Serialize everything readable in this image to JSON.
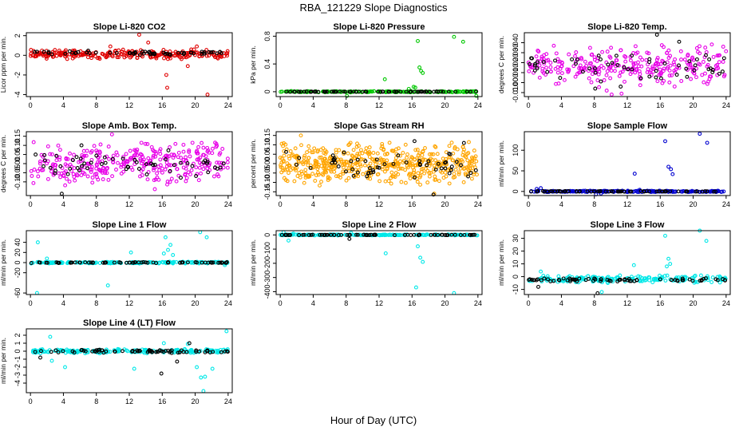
{
  "figure": {
    "title": "RBA_121229  Slope Diagnostics",
    "xlabel": "Hour of Day (UTC)"
  },
  "chart_data": [
    {
      "type": "scatter",
      "title": "Slope Li-820 CO2",
      "ylabel": "Licor ppm per min.",
      "xlim": [
        -0.5,
        24.5
      ],
      "ylim": [
        -4.2,
        2.3
      ],
      "xticks": [
        0,
        4,
        8,
        12,
        16,
        20,
        24
      ],
      "yticks": [
        -4,
        -2,
        0,
        2
      ],
      "series": [
        {
          "color": "#e00000",
          "marker": "circle",
          "band": {
            "center": 0.1,
            "spread": 0.5,
            "n": 260
          },
          "points": [
            [
              13.2,
              2.1
            ],
            [
              14.3,
              1.3
            ],
            [
              16.5,
              -2.0
            ],
            [
              16.6,
              -3.3
            ],
            [
              20.2,
              0.9
            ],
            [
              21.5,
              -4.0
            ],
            [
              19.1,
              -1.1
            ],
            [
              9.7,
              0.9
            ]
          ]
        },
        {
          "color": "#000000",
          "marker": "circle",
          "band": {
            "center": 0.25,
            "spread": 0.25,
            "n": 60
          },
          "points": []
        }
      ]
    },
    {
      "type": "scatter",
      "title": "Slope Li-820 Pressure",
      "ylabel": "kPa per min.",
      "xlim": [
        -0.5,
        24.5
      ],
      "ylim": [
        -0.07,
        0.85
      ],
      "xticks": [
        0,
        4,
        8,
        12,
        16,
        20,
        24
      ],
      "yticks": [
        0.0,
        0.4,
        0.8
      ],
      "series": [
        {
          "color": "#00c800",
          "marker": "circle",
          "band": {
            "center": 0.0,
            "spread": 0.01,
            "n": 180
          },
          "points": [
            [
              16.7,
              0.73
            ],
            [
              16.9,
              0.35
            ],
            [
              17.1,
              0.3
            ],
            [
              17.3,
              0.27
            ],
            [
              16.2,
              0.07
            ],
            [
              16.4,
              0.06
            ],
            [
              12.7,
              0.18
            ],
            [
              21.1,
              0.79
            ],
            [
              22.2,
              0.72
            ],
            [
              8.1,
              -0.06
            ],
            [
              23.8,
              -0.06
            ],
            [
              15.6,
              0.04
            ]
          ]
        },
        {
          "color": "#000000",
          "marker": "circle",
          "band": {
            "center": 0.0,
            "spread": 0.004,
            "n": 70
          },
          "points": []
        }
      ]
    },
    {
      "type": "scatter",
      "title": "Slope Li-820 Temp.",
      "ylabel": "degrees C per min.",
      "xlim": [
        -0.5,
        24.5
      ],
      "ylim": [
        -0.014,
        0.05
      ],
      "xticks": [
        0,
        4,
        8,
        12,
        16,
        20,
        24
      ],
      "yticks": [
        -0.01,
        0.0,
        0.01,
        0.02,
        0.03,
        0.04
      ],
      "ytick_labels": [
        "-0.010",
        "0.000",
        "0.010",
        "0.020",
        "0.030",
        "0.040"
      ],
      "series": [
        {
          "color": "#e800e8",
          "marker": "circle",
          "band": {
            "center": 0.017,
            "spread": 0.022,
            "n": 280
          },
          "points": [
            [
              10.1,
              -0.012
            ],
            [
              11.3,
              -0.011
            ],
            [
              9.5,
              -0.008
            ]
          ]
        },
        {
          "color": "#000000",
          "marker": "circle",
          "band": {
            "center": 0.016,
            "spread": 0.016,
            "n": 55
          },
          "points": [
            [
              15.6,
              0.048
            ],
            [
              18.3,
              0.041
            ],
            [
              8.1,
              -0.006
            ],
            [
              11.2,
              -0.004
            ]
          ]
        }
      ]
    },
    {
      "type": "scatter",
      "title": "Slope Amb. Box Temp.",
      "ylabel": "degrees C per min.",
      "xlim": [
        -0.5,
        24.5
      ],
      "ylim": [
        -0.175,
        0.175
      ],
      "xticks": [
        0,
        4,
        8,
        12,
        16,
        20,
        24
      ],
      "yticks": [
        -0.1,
        -0.05,
        0.0,
        0.05,
        0.1,
        0.15
      ],
      "ytick_labels": [
        "-0.10",
        "-0.05",
        "0.00",
        "0.05",
        "0.10",
        "0.15"
      ],
      "series": [
        {
          "color": "#e800e8",
          "marker": "circle",
          "band": {
            "center": 0.0,
            "spread": 0.12,
            "n": 330
          },
          "points": [
            [
              9.9,
              0.16
            ],
            [
              15.1,
              -0.14
            ]
          ]
        },
        {
          "color": "#000000",
          "marker": "circle",
          "band": {
            "center": 0.0,
            "spread": 0.08,
            "n": 55
          },
          "points": [
            [
              3.8,
              -0.165
            ],
            [
              6.2,
              0.1
            ]
          ]
        }
      ]
    },
    {
      "type": "scatter",
      "title": "Slope Gas Stream RH",
      "ylabel": "percent per min.",
      "xlim": [
        -0.5,
        24.5
      ],
      "ylim": [
        -0.17,
        0.17
      ],
      "xticks": [
        0,
        4,
        8,
        12,
        16,
        20,
        24
      ],
      "yticks": [
        -0.15,
        -0.1,
        -0.05,
        0.0,
        0.05,
        0.1,
        0.15
      ],
      "ytick_labels": [
        "-0.15",
        "-0.10",
        "-0.05",
        "0.00",
        "0.05",
        "0.10",
        "0.15"
      ],
      "series": [
        {
          "color": "#ffa500",
          "marker": "circle",
          "band": {
            "center": 0.0,
            "spread": 0.12,
            "n": 520
          },
          "points": [
            [
              18.7,
              -0.16
            ],
            [
              2.5,
              0.15
            ]
          ]
        },
        {
          "color": "#000000",
          "marker": "circle",
          "band": {
            "center": 0.0,
            "spread": 0.08,
            "n": 55
          },
          "points": [
            [
              16.3,
              0.12
            ],
            [
              18.6,
              -0.165
            ],
            [
              22.3,
              0.11
            ]
          ]
        }
      ]
    },
    {
      "type": "scatter",
      "title": "Slope Sample Flow",
      "ylabel": "ml/min per min.",
      "xlim": [
        -0.5,
        24.5
      ],
      "ylim": [
        -10,
        145
      ],
      "xticks": [
        0,
        4,
        8,
        12,
        16,
        20,
        24
      ],
      "yticks": [
        0,
        50,
        100
      ],
      "series": [
        {
          "color": "#0000d0",
          "marker": "circle",
          "band": {
            "center": 0,
            "spread": 2,
            "n": 200
          },
          "points": [
            [
              16.6,
              122
            ],
            [
              20.8,
              140
            ],
            [
              21.7,
              118
            ],
            [
              17.0,
              60
            ],
            [
              17.3,
              54
            ],
            [
              17.5,
              42
            ],
            [
              12.9,
              43
            ],
            [
              1.5,
              8
            ],
            [
              8.2,
              -7
            ],
            [
              8.8,
              -5
            ],
            [
              1.0,
              6
            ],
            [
              13.5,
              4
            ]
          ]
        },
        {
          "color": "#000000",
          "marker": "circle",
          "band": {
            "center": 0,
            "spread": 1,
            "n": 70
          },
          "points": []
        }
      ]
    },
    {
      "type": "scatter",
      "title": "Slope Line 1 Flow",
      "ylabel": "ml/min per min.",
      "xlim": [
        -0.5,
        24.5
      ],
      "ylim": [
        -63,
        63
      ],
      "xticks": [
        0,
        4,
        8,
        12,
        16,
        20,
        24
      ],
      "yticks": [
        -60,
        -20,
        0,
        20,
        40
      ],
      "series": [
        {
          "color": "#00e8e8",
          "marker": "circle",
          "band": {
            "center": 0,
            "spread": 2,
            "n": 200
          },
          "points": [
            [
              0.9,
              40
            ],
            [
              0.8,
              -60
            ],
            [
              16.4,
              50
            ],
            [
              16.7,
              25
            ],
            [
              17.0,
              35
            ],
            [
              16.2,
              18
            ],
            [
              17.3,
              15
            ],
            [
              12.2,
              20
            ],
            [
              9.4,
              -45
            ],
            [
              20.6,
              60
            ],
            [
              21.4,
              50
            ],
            [
              2.0,
              8
            ],
            [
              23.6,
              -5
            ]
          ]
        },
        {
          "color": "#000000",
          "marker": "circle",
          "band": {
            "center": 0,
            "spread": 1,
            "n": 70
          },
          "points": []
        }
      ]
    },
    {
      "type": "scatter",
      "title": "Slope Line 2 Flow",
      "ylabel": "ml/min per min.",
      "xlim": [
        -0.5,
        24.5
      ],
      "ylim": [
        -420,
        30
      ],
      "xticks": [
        0,
        4,
        8,
        12,
        16,
        20,
        24
      ],
      "yticks": [
        -400,
        -300,
        -200,
        -100,
        0
      ],
      "series": [
        {
          "color": "#00e8e8",
          "marker": "circle",
          "band": {
            "center": 0,
            "spread": 4,
            "n": 200
          },
          "points": [
            [
              1.0,
              -40
            ],
            [
              0.4,
              20
            ],
            [
              16.7,
              -80
            ],
            [
              17.0,
              -160
            ],
            [
              17.3,
              -190
            ],
            [
              16.5,
              -370
            ],
            [
              21.1,
              -410
            ],
            [
              12.8,
              -130
            ],
            [
              8.6,
              15
            ],
            [
              1.6,
              10
            ]
          ]
        },
        {
          "color": "#000000",
          "marker": "circle",
          "band": {
            "center": 0,
            "spread": 2,
            "n": 70
          },
          "points": [
            [
              8.4,
              -28
            ]
          ]
        }
      ]
    },
    {
      "type": "scatter",
      "title": "Slope Line 3 Flow",
      "ylabel": "ml/min per min.",
      "xlim": [
        -0.5,
        24.5
      ],
      "ylim": [
        -14,
        36
      ],
      "xticks": [
        0,
        4,
        8,
        12,
        16,
        20,
        24
      ],
      "yticks": [
        -10,
        0,
        10,
        20,
        30
      ],
      "series": [
        {
          "color": "#00e8e8",
          "marker": "circle",
          "band": {
            "center": -2,
            "spread": 3,
            "n": 200
          },
          "points": [
            [
              16.6,
              32
            ],
            [
              20.8,
              36
            ],
            [
              21.6,
              28
            ],
            [
              17.0,
              14
            ],
            [
              17.2,
              10
            ],
            [
              16.8,
              8
            ],
            [
              12.8,
              9
            ],
            [
              8.9,
              -12
            ],
            [
              1.5,
              4
            ]
          ]
        },
        {
          "color": "#000000",
          "marker": "circle",
          "band": {
            "center": -2.5,
            "spread": 1.5,
            "n": 70
          },
          "points": [
            [
              1.2,
              -8
            ],
            [
              8.4,
              -13
            ]
          ]
        }
      ]
    },
    {
      "type": "scatter",
      "title": "Slope Line 4 (LT) Flow",
      "ylabel": "ml/min per min.",
      "xlim": [
        -0.5,
        24.5
      ],
      "ylim": [
        -5.2,
        2.8
      ],
      "xticks": [
        0,
        4,
        8,
        12,
        16,
        20,
        24
      ],
      "yticks": [
        -4,
        -3,
        -2,
        -1,
        0,
        1,
        2
      ],
      "series": [
        {
          "color": "#00e8e8",
          "marker": "circle",
          "band": {
            "center": 0,
            "spread": 0.3,
            "n": 200
          },
          "points": [
            [
              2.4,
              1.8
            ],
            [
              2.6,
              -1.2
            ],
            [
              4.2,
              -2.0
            ],
            [
              12.6,
              -2.2
            ],
            [
              16.2,
              1.0
            ],
            [
              20.2,
              -2.0
            ],
            [
              20.7,
              -3.3
            ],
            [
              21.2,
              -3.2
            ],
            [
              21.0,
              -5.0
            ],
            [
              23.8,
              2.5
            ],
            [
              22.1,
              -2.2
            ],
            [
              19.1,
              0.9
            ]
          ]
        },
        {
          "color": "#000000",
          "marker": "circle",
          "band": {
            "center": 0,
            "spread": 0.25,
            "n": 70
          },
          "points": [
            [
              1.2,
              -0.8
            ],
            [
              15.9,
              -2.8
            ],
            [
              17.8,
              -1.3
            ],
            [
              19.3,
              1.0
            ]
          ]
        }
      ]
    }
  ]
}
